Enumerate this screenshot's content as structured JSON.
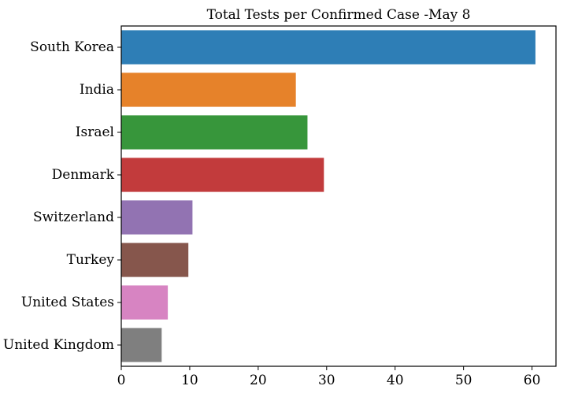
{
  "chart_data": {
    "type": "bar",
    "orientation": "horizontal",
    "title": "Total Tests per Confirmed Case -May 8",
    "xlabel": "",
    "ylabel": "",
    "categories": [
      "South Korea",
      "India",
      "Israel",
      "Denmark",
      "Switzerland",
      "Turkey",
      "United States",
      "United Kingdom"
    ],
    "values": [
      60.5,
      25.5,
      27.2,
      29.6,
      10.4,
      9.8,
      6.8,
      5.9
    ],
    "colors": [
      "#2e7eb6",
      "#e6822a",
      "#37963b",
      "#c23b3c",
      "#9273b2",
      "#86564c",
      "#d784c2",
      "#7f7f7f"
    ],
    "xlim": [
      0,
      63.5
    ],
    "xticks": [
      0,
      10,
      20,
      30,
      40,
      50,
      60
    ],
    "grid": false,
    "legend": "none"
  }
}
